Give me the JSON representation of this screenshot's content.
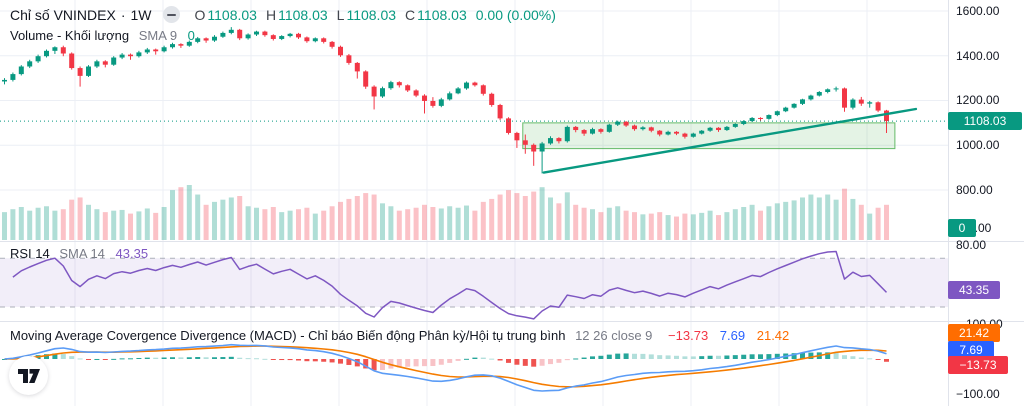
{
  "header": {
    "symbol": "Chỉ số VNINDEX",
    "separator": "·",
    "timeframe": "1W",
    "o_label": "O",
    "o": "1108.03",
    "h_label": "H",
    "h": "1108.03",
    "l_label": "L",
    "l": "1108.03",
    "c_label": "C",
    "c": "1108.03",
    "change": "0.00 (0.00%)"
  },
  "volume_legend": {
    "title": "Volume - Khối lượng",
    "param": "SMA 9",
    "value": "0"
  },
  "rsi_legend": {
    "title": "RSI 14",
    "param": "SMA 14",
    "value": "43.35"
  },
  "macd_legend": {
    "title": "Moving Average Covergence Divergence (MACD) - Chỉ báo Biến động Phân kỳ/Hội tụ trung bình",
    "param": "12 26 close 9",
    "hist_value": "−13.73",
    "macd_value": "7.69",
    "signal_value": "21.42"
  },
  "axis": {
    "main": [
      "1600.00",
      "1400.00",
      "1200.00",
      "1000.00",
      "800.00"
    ],
    "volume_floor": "0.00",
    "rsi_top": "80.00",
    "macd_top": "100.00",
    "macd_bottom": "−100.00"
  },
  "badges": {
    "price": "1108.03",
    "volume": "0",
    "rsi": "43.35",
    "macd_signal": "21.42",
    "macd_line": "7.69",
    "macd_hist": "−13.73"
  },
  "chart_data": {
    "type": "candlestick",
    "symbol": "VNINDEX",
    "timeframe": "1W",
    "panes": [
      "price+volume",
      "RSI(14)",
      "MACD(12,26,9)"
    ],
    "price_axis_labels": [
      1600,
      1400,
      1200,
      1000,
      800
    ],
    "last_values": {
      "close": 1108.03,
      "volume": 0,
      "rsi": 43.35,
      "macd": 7.69,
      "signal": 21.42,
      "histogram": -13.73
    },
    "rsi_guides": [
      70,
      30
    ],
    "macd_axis_range": [
      -100,
      100
    ],
    "candles_format": [
      "open",
      "high",
      "low",
      "close",
      "volume_rel"
    ],
    "candles": [
      [
        1285,
        1300,
        1272,
        1292,
        38
      ],
      [
        1292,
        1325,
        1285,
        1318,
        42
      ],
      [
        1318,
        1358,
        1312,
        1352,
        45
      ],
      [
        1352,
        1382,
        1345,
        1375,
        40
      ],
      [
        1375,
        1405,
        1368,
        1398,
        44
      ],
      [
        1398,
        1428,
        1392,
        1422,
        46
      ],
      [
        1422,
        1442,
        1408,
        1438,
        40
      ],
      [
        1438,
        1445,
        1398,
        1410,
        42
      ],
      [
        1410,
        1415,
        1338,
        1345,
        55
      ],
      [
        1345,
        1352,
        1262,
        1310,
        58
      ],
      [
        1310,
        1358,
        1305,
        1352,
        48
      ],
      [
        1352,
        1382,
        1345,
        1375,
        42
      ],
      [
        1375,
        1380,
        1348,
        1360,
        38
      ],
      [
        1360,
        1398,
        1355,
        1392,
        40
      ],
      [
        1392,
        1412,
        1385,
        1405,
        41
      ],
      [
        1405,
        1410,
        1382,
        1398,
        36
      ],
      [
        1398,
        1422,
        1392,
        1415,
        39
      ],
      [
        1415,
        1435,
        1408,
        1428,
        43
      ],
      [
        1428,
        1432,
        1405,
        1420,
        37
      ],
      [
        1420,
        1445,
        1415,
        1438,
        45
      ],
      [
        1438,
        1458,
        1432,
        1452,
        68
      ],
      [
        1452,
        1456,
        1435,
        1445,
        72
      ],
      [
        1445,
        1468,
        1440,
        1462,
        75
      ],
      [
        1462,
        1484,
        1456,
        1478,
        62
      ],
      [
        1478,
        1482,
        1458,
        1468,
        48
      ],
      [
        1468,
        1492,
        1462,
        1485,
        52
      ],
      [
        1485,
        1508,
        1480,
        1502,
        55
      ],
      [
        1502,
        1528,
        1496,
        1516,
        58
      ],
      [
        1516,
        1520,
        1470,
        1478,
        60
      ],
      [
        1478,
        1500,
        1472,
        1495,
        46
      ],
      [
        1495,
        1512,
        1488,
        1508,
        44
      ],
      [
        1508,
        1512,
        1485,
        1492,
        42
      ],
      [
        1492,
        1496,
        1468,
        1475,
        45
      ],
      [
        1475,
        1492,
        1470,
        1488,
        38
      ],
      [
        1488,
        1502,
        1482,
        1498,
        40
      ],
      [
        1498,
        1502,
        1475,
        1482,
        42
      ],
      [
        1482,
        1486,
        1458,
        1465,
        44
      ],
      [
        1465,
        1482,
        1460,
        1478,
        36
      ],
      [
        1478,
        1482,
        1455,
        1462,
        40
      ],
      [
        1462,
        1466,
        1432,
        1440,
        46
      ],
      [
        1440,
        1445,
        1395,
        1402,
        52
      ],
      [
        1402,
        1408,
        1360,
        1368,
        56
      ],
      [
        1368,
        1372,
        1298,
        1330,
        60
      ],
      [
        1330,
        1335,
        1252,
        1262,
        64
      ],
      [
        1262,
        1268,
        1160,
        1218,
        62
      ],
      [
        1218,
        1262,
        1212,
        1255,
        50
      ],
      [
        1255,
        1288,
        1248,
        1282,
        46
      ],
      [
        1282,
        1286,
        1258,
        1268,
        40
      ],
      [
        1268,
        1272,
        1238,
        1245,
        42
      ],
      [
        1245,
        1250,
        1215,
        1222,
        44
      ],
      [
        1222,
        1228,
        1142,
        1198,
        48
      ],
      [
        1198,
        1215,
        1168,
        1176,
        45
      ],
      [
        1176,
        1212,
        1170,
        1205,
        43
      ],
      [
        1205,
        1240,
        1200,
        1232,
        46
      ],
      [
        1232,
        1260,
        1228,
        1254,
        44
      ],
      [
        1254,
        1285,
        1248,
        1280,
        47
      ],
      [
        1280,
        1284,
        1262,
        1268,
        40
      ],
      [
        1268,
        1272,
        1222,
        1230,
        52
      ],
      [
        1230,
        1235,
        1172,
        1180,
        56
      ],
      [
        1180,
        1185,
        1112,
        1120,
        62
      ],
      [
        1120,
        1125,
        1048,
        1055,
        68
      ],
      [
        1055,
        1060,
        988,
        1022,
        64
      ],
      [
        1022,
        1048,
        962,
        1002,
        60
      ],
      [
        1002,
        1008,
        908,
        972,
        66
      ],
      [
        972,
        1015,
        874,
        1008,
        72
      ],
      [
        1008,
        1040,
        1002,
        1032,
        58
      ],
      [
        1032,
        1036,
        1008,
        1018,
        50
      ],
      [
        1018,
        1088,
        1012,
        1082,
        65
      ],
      [
        1082,
        1086,
        1058,
        1068,
        48
      ],
      [
        1068,
        1072,
        1042,
        1052,
        44
      ],
      [
        1052,
        1078,
        1048,
        1072,
        42
      ],
      [
        1072,
        1076,
        1052,
        1060,
        38
      ],
      [
        1060,
        1096,
        1056,
        1092,
        44
      ],
      [
        1092,
        1110,
        1086,
        1105,
        46
      ],
      [
        1105,
        1108,
        1082,
        1088,
        40
      ],
      [
        1088,
        1092,
        1065,
        1072,
        38
      ],
      [
        1072,
        1085,
        1066,
        1080,
        35
      ],
      [
        1080,
        1083,
        1058,
        1065,
        36
      ],
      [
        1065,
        1068,
        1040,
        1048,
        38
      ],
      [
        1048,
        1065,
        1044,
        1060,
        34
      ],
      [
        1060,
        1063,
        1045,
        1052,
        32
      ],
      [
        1052,
        1056,
        1030,
        1038,
        36
      ],
      [
        1038,
        1056,
        1034,
        1052,
        35
      ],
      [
        1052,
        1068,
        1048,
        1065,
        37
      ],
      [
        1065,
        1082,
        1060,
        1078,
        40
      ],
      [
        1078,
        1081,
        1060,
        1068,
        34
      ],
      [
        1068,
        1086,
        1064,
        1082,
        38
      ],
      [
        1082,
        1098,
        1078,
        1095,
        42
      ],
      [
        1095,
        1112,
        1090,
        1108,
        45
      ],
      [
        1108,
        1126,
        1104,
        1122,
        48
      ],
      [
        1122,
        1125,
        1108,
        1118,
        40
      ],
      [
        1118,
        1138,
        1114,
        1135,
        46
      ],
      [
        1135,
        1155,
        1130,
        1152,
        50
      ],
      [
        1152,
        1172,
        1148,
        1168,
        52
      ],
      [
        1168,
        1188,
        1164,
        1185,
        54
      ],
      [
        1185,
        1208,
        1180,
        1205,
        58
      ],
      [
        1205,
        1226,
        1200,
        1222,
        62
      ],
      [
        1222,
        1242,
        1218,
        1238,
        58
      ],
      [
        1238,
        1254,
        1232,
        1250,
        62
      ],
      [
        1250,
        1262,
        1240,
        1254,
        55
      ],
      [
        1254,
        1258,
        1150,
        1168,
        70
      ],
      [
        1168,
        1210,
        1160,
        1204,
        56
      ],
      [
        1204,
        1216,
        1176,
        1186,
        48
      ],
      [
        1186,
        1198,
        1168,
        1192,
        36
      ],
      [
        1192,
        1196,
        1148,
        1155,
        44
      ],
      [
        1155,
        1158,
        1055,
        1108,
        48
      ]
    ],
    "drawings": {
      "rectangle": {
        "start_index": 61.7,
        "end_index": 106,
        "price_top": 1100,
        "price_bottom": 985
      },
      "trendline": {
        "x1_index": 64.2,
        "price1": 878,
        "x2_index": 108.5,
        "price2": 1162
      },
      "current_price_line": 1108.03
    },
    "colors": {
      "up": "#089981",
      "down": "#f23645",
      "vol_up": "rgba(8,153,129,0.32)",
      "vol_down": "rgba(242,54,69,0.30)",
      "grid": "#eceff5",
      "separator": "#e0e3eb",
      "rsi_line": "#7e57c2",
      "rsi_band": "rgba(126,87,194,0.10)",
      "rsi_guide": "#9ba0aa",
      "macd_line": "#5b9cf6",
      "signal_line": "#f57c00",
      "hist_up_grow": "#26a69a",
      "hist_up_fall": "#b2dfdb",
      "hist_down_fall": "#ef5350",
      "hist_down_grow": "#f8c3c7",
      "box_fill": "rgba(76,175,80,0.15)",
      "box_stroke": "rgba(76,175,80,0.85)",
      "trend": "#089981",
      "price_line": "#089981",
      "badge_price": "#089981",
      "badge_rsi": "#7e57c2",
      "badge_signal": "#ff6d00",
      "badge_macd": "#2962ff",
      "badge_hist": "#f23645"
    }
  }
}
